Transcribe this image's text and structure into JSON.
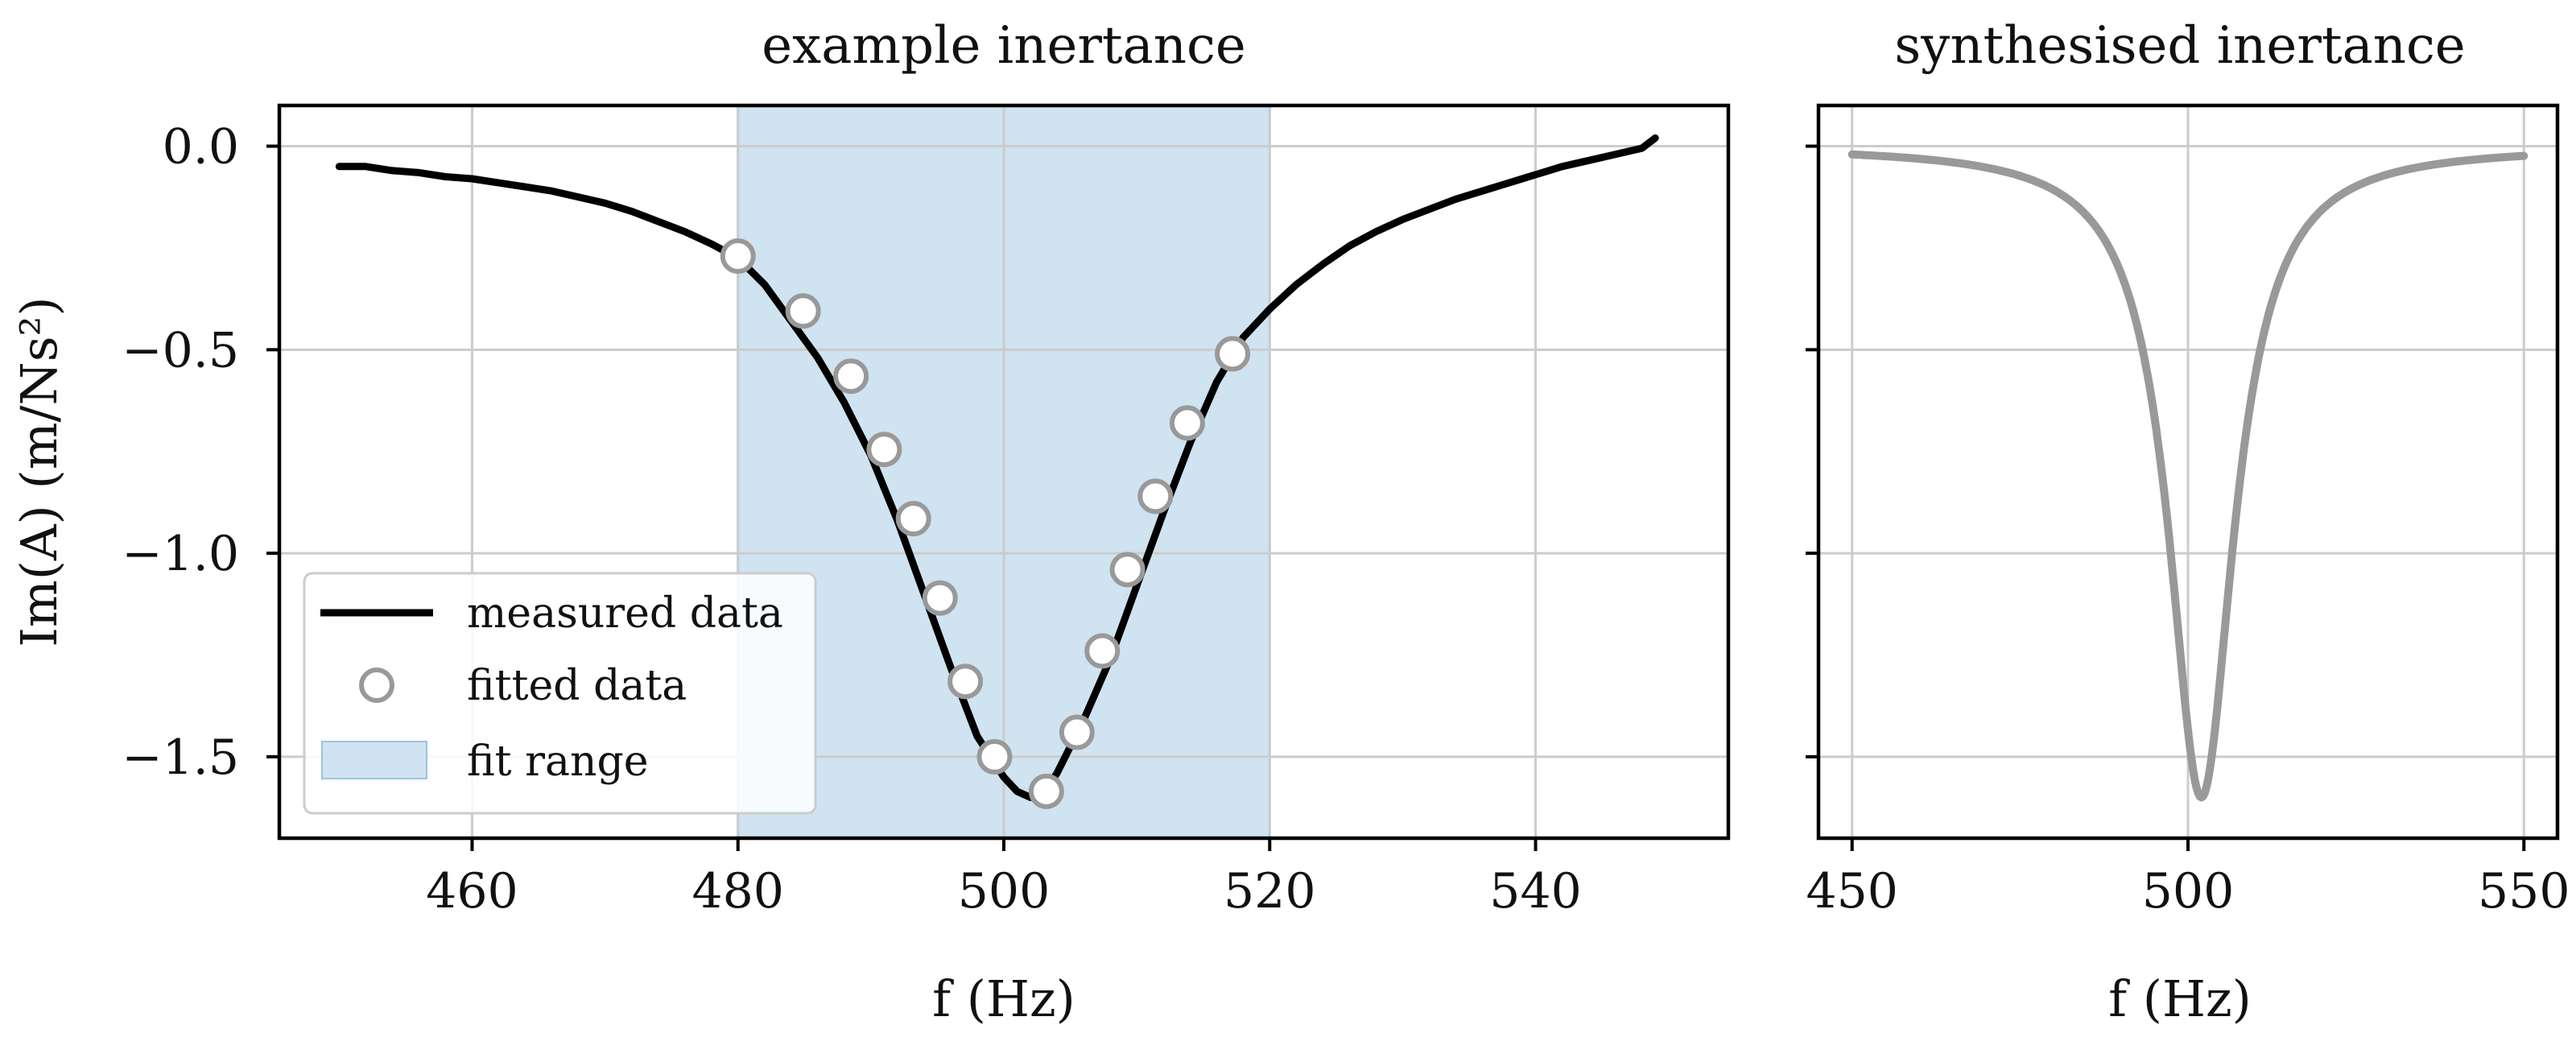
{
  "chart_data": [
    {
      "type": "line",
      "title": "example inertance",
      "xlabel": "f (Hz)",
      "ylabel": "Im(A) (m/Ns²)",
      "xlim": [
        445.5,
        554.5
      ],
      "ylim": [
        -1.7,
        0.1
      ],
      "xticks": [
        460,
        480,
        500,
        520,
        540
      ],
      "xtick_labels": [
        "460",
        "480",
        "500",
        "520",
        "540"
      ],
      "yticks": [
        0.0,
        -0.5,
        -1.0,
        -1.5
      ],
      "ytick_labels": [
        "0.0",
        "−0.5",
        "−1.0",
        "−1.5"
      ],
      "grid": true,
      "legend_position": "lower-left",
      "fit_range": {
        "label": "fit range",
        "x0": 480,
        "x1": 520,
        "color": "#cfe3f0",
        "edge": "#9cc4de"
      },
      "series": [
        {
          "name": "measured data",
          "style": "line",
          "color": "#000000",
          "x": [
            450,
            452,
            454,
            456,
            458,
            460,
            462,
            464,
            466,
            468,
            470,
            472,
            474,
            476,
            478,
            480,
            482,
            484,
            486,
            488,
            490,
            492,
            494,
            496,
            498,
            500,
            501,
            502,
            503,
            504,
            506,
            508,
            510,
            512,
            514,
            516,
            518,
            520,
            522,
            524,
            526,
            528,
            530,
            532,
            534,
            536,
            538,
            540,
            542,
            544,
            546,
            548,
            549
          ],
          "y": [
            -0.05,
            -0.05,
            -0.06,
            -0.065,
            -0.075,
            -0.08,
            -0.09,
            -0.1,
            -0.11,
            -0.125,
            -0.14,
            -0.16,
            -0.185,
            -0.21,
            -0.24,
            -0.275,
            -0.34,
            -0.43,
            -0.52,
            -0.63,
            -0.76,
            -0.92,
            -1.1,
            -1.28,
            -1.45,
            -1.55,
            -1.585,
            -1.6,
            -1.59,
            -1.54,
            -1.41,
            -1.26,
            -1.08,
            -0.9,
            -0.73,
            -0.58,
            -0.47,
            -0.4,
            -0.34,
            -0.29,
            -0.245,
            -0.21,
            -0.18,
            -0.155,
            -0.13,
            -0.11,
            -0.09,
            -0.07,
            -0.05,
            -0.035,
            -0.02,
            -0.005,
            0.02
          ]
        },
        {
          "name": "fitted data",
          "style": "markers",
          "color": "#999999",
          "x": [
            480,
            484.9,
            488.5,
            491,
            493.2,
            495.2,
            497.1,
            499.3,
            503.2,
            505.5,
            507.4,
            509.3,
            511.4,
            513.8,
            517.2
          ],
          "y": [
            -0.27,
            -0.405,
            -0.565,
            -0.745,
            -0.915,
            -1.11,
            -1.315,
            -1.5,
            -1.585,
            -1.44,
            -1.24,
            -1.04,
            -0.86,
            -0.68,
            -0.51
          ]
        }
      ]
    },
    {
      "type": "line",
      "title": "synthesised inertance",
      "xlabel": "f (Hz)",
      "ylabel": "",
      "xlim": [
        445,
        555
      ],
      "ylim": [
        -1.7,
        0.1
      ],
      "xticks": [
        450,
        500,
        550
      ],
      "xtick_labels": [
        "450",
        "500",
        "550"
      ],
      "grid": true,
      "series": [
        {
          "style": "line",
          "color": "#999999",
          "model": {
            "f0": 502,
            "amplitude": -1.6,
            "half_width": 5.9
          },
          "x_range": [
            450,
            550
          ]
        }
      ]
    }
  ]
}
